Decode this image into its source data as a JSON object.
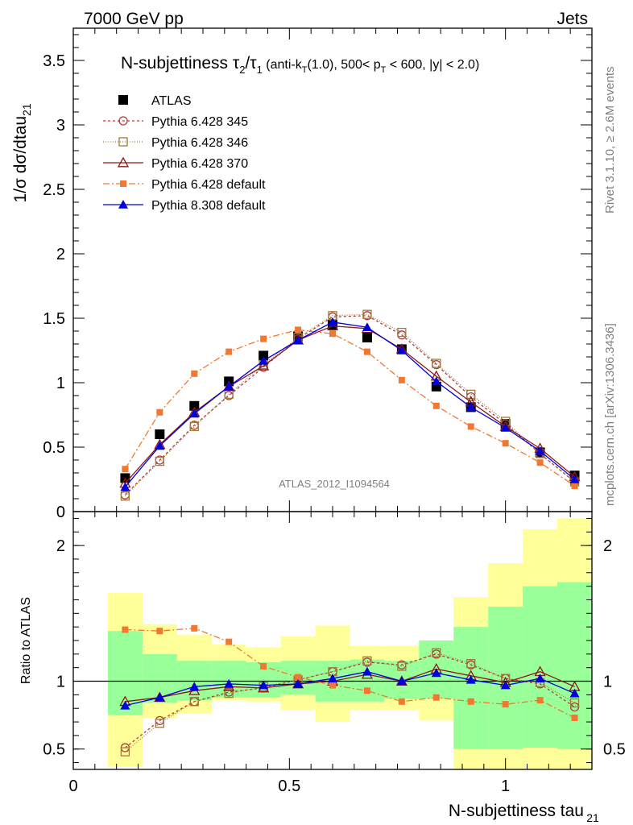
{
  "header": {
    "energy": "7000 GeV pp",
    "process": "Jets"
  },
  "side_labels": {
    "rivet": "Rivet 3.1.10, ≥ 2.6M events",
    "mcplots": "mcplots.cern.ch [arXiv:1306.3436]"
  },
  "watermark": "ATLAS_2012_I1094564",
  "chart_data": [
    {
      "type": "line",
      "title": "N-subjettiness τ2/τ1 (anti-kT(1.0), 500< pT < 600, |y| < 2.0)",
      "title_parts": {
        "main": "N-subjettiness τ",
        "sub1": "2",
        "slash": "/τ",
        "sub2": "1",
        "small_a": " (anti-k",
        "small_a_sub": "T",
        "small_b": "(1.0), 500< p",
        "small_b_sub": "T",
        "small_c": " < 600, |y| < 2.0)"
      },
      "ylabel": "1/σ dσ/dtau21",
      "ylabel_parts": {
        "main": "1/σ dσ/dtau",
        "sub": "21"
      },
      "xlim": [
        0,
        1.2
      ],
      "ylim": [
        0,
        3.75
      ],
      "yticks": [
        0,
        0.5,
        1,
        1.5,
        2,
        2.5,
        3,
        3.5
      ],
      "ytick_labels": [
        "0",
        "0.5",
        "1",
        "1.5",
        "2",
        "2.5",
        "3",
        "3.5"
      ],
      "legend_position": "top-left",
      "x": [
        0.12,
        0.2,
        0.28,
        0.36,
        0.44,
        0.52,
        0.6,
        0.68,
        0.76,
        0.84,
        0.92,
        1.0,
        1.08,
        1.16
      ],
      "series": [
        {
          "name": "ATLAS",
          "color": "#000000",
          "marker": "filled-square",
          "dash": "none",
          "values": [
            0.26,
            0.6,
            0.82,
            1.01,
            1.21,
            1.36,
            1.45,
            1.35,
            1.26,
            0.97,
            0.81,
            0.68,
            0.46,
            0.28
          ]
        },
        {
          "name": "Pythia 6.428 345",
          "color": "#b13a3a",
          "marker": "open-circle",
          "dash": "3,3",
          "values": [
            0.13,
            0.4,
            0.67,
            0.9,
            1.12,
            1.34,
            1.51,
            1.52,
            1.37,
            1.14,
            0.89,
            0.68,
            0.45,
            0.23
          ]
        },
        {
          "name": "Pythia 6.428 346",
          "color": "#9e7b3a",
          "marker": "open-square",
          "dash": "1,2",
          "values": [
            0.12,
            0.39,
            0.66,
            0.91,
            1.14,
            1.35,
            1.52,
            1.53,
            1.39,
            1.15,
            0.91,
            0.7,
            0.45,
            0.23
          ]
        },
        {
          "name": "Pythia 6.428 370",
          "color": "#8b1a1a",
          "marker": "open-triangle",
          "dash": "none",
          "values": [
            0.22,
            0.52,
            0.77,
            0.97,
            1.13,
            1.33,
            1.44,
            1.42,
            1.26,
            1.05,
            0.85,
            0.66,
            0.49,
            0.27
          ]
        },
        {
          "name": "Pythia 6.428 default",
          "color": "#f07830",
          "marker": "filled-square-small",
          "dash": "8,3,2,3",
          "values": [
            0.33,
            0.77,
            1.07,
            1.24,
            1.34,
            1.41,
            1.38,
            1.24,
            1.02,
            0.82,
            0.66,
            0.53,
            0.38,
            0.2
          ]
        },
        {
          "name": "Pythia 8.308 default",
          "color": "#0000dd",
          "marker": "filled-triangle",
          "dash": "none",
          "values": [
            0.19,
            0.51,
            0.76,
            0.97,
            1.17,
            1.33,
            1.47,
            1.43,
            1.25,
            1.01,
            0.81,
            0.65,
            0.47,
            0.25
          ]
        }
      ]
    },
    {
      "type": "line",
      "ylabel": "Ratio to ATLAS",
      "xlabel": "N-subjettiness tau21",
      "xlabel_parts": {
        "main": "N-subjettiness tau",
        "sub": "21"
      },
      "xlim": [
        0,
        1.2
      ],
      "ylim": [
        0.35,
        2.25
      ],
      "xticks": [
        0,
        0.5,
        1
      ],
      "xtick_labels": [
        "0",
        "0.5",
        "1"
      ],
      "yticks": [
        0.5,
        1,
        2
      ],
      "ytick_labels": [
        "0.5",
        "1",
        "2"
      ],
      "reference_line": 1,
      "bins": [
        [
          0.08,
          0.16
        ],
        [
          0.16,
          0.24
        ],
        [
          0.24,
          0.32
        ],
        [
          0.32,
          0.4
        ],
        [
          0.4,
          0.48
        ],
        [
          0.48,
          0.56
        ],
        [
          0.56,
          0.64
        ],
        [
          0.64,
          0.72
        ],
        [
          0.72,
          0.8
        ],
        [
          0.8,
          0.88
        ],
        [
          0.88,
          0.96
        ],
        [
          0.96,
          1.04
        ],
        [
          1.04,
          1.12
        ],
        [
          1.12,
          1.2
        ]
      ],
      "band_total": {
        "color": "#ffff99",
        "lo": [
          0.37,
          0.73,
          0.76,
          0.86,
          0.85,
          0.79,
          0.7,
          0.79,
          0.79,
          0.71,
          0.28,
          0.28,
          0.28,
          0.28
        ],
        "hi": [
          1.65,
          1.42,
          1.34,
          1.27,
          1.25,
          1.33,
          1.41,
          1.26,
          1.26,
          1.3,
          1.62,
          1.87,
          2.12,
          2.2
        ]
      },
      "band_stat": {
        "color": "#99ff99",
        "lo": [
          0.75,
          0.84,
          0.86,
          0.88,
          0.88,
          0.9,
          0.85,
          0.85,
          0.87,
          0.87,
          0.5,
          0.5,
          0.51,
          0.5
        ],
        "hi": [
          1.37,
          1.2,
          1.15,
          1.15,
          1.14,
          1.15,
          1.15,
          1.16,
          1.15,
          1.3,
          1.4,
          1.55,
          1.7,
          1.73
        ]
      },
      "series": [
        {
          "name": "Pythia 6.428 345",
          "color": "#b13a3a",
          "marker": "open-circle",
          "dash": "3,3",
          "values": [
            0.51,
            0.71,
            0.85,
            0.92,
            0.95,
            1.01,
            1.07,
            1.14,
            1.12,
            1.2,
            1.12,
            1.02,
            0.98,
            0.81
          ]
        },
        {
          "name": "Pythia 6.428 346",
          "color": "#9e7b3a",
          "marker": "open-square",
          "dash": "1,2",
          "values": [
            0.48,
            0.69,
            0.85,
            0.91,
            0.96,
            1.01,
            1.07,
            1.15,
            1.11,
            1.21,
            1.13,
            1.02,
            0.99,
            0.84
          ]
        },
        {
          "name": "Pythia 6.428 370",
          "color": "#8b1a1a",
          "marker": "open-triangle",
          "dash": "none",
          "values": [
            0.85,
            0.88,
            0.93,
            0.96,
            0.95,
            0.98,
            1.0,
            1.05,
            1.0,
            1.09,
            1.04,
            0.99,
            1.07,
            0.96
          ]
        },
        {
          "name": "Pythia 6.428 default",
          "color": "#f07830",
          "marker": "filled-square-small",
          "dash": "8,3,2,3",
          "values": [
            1.38,
            1.37,
            1.39,
            1.29,
            1.11,
            1.03,
            0.97,
            0.93,
            0.85,
            0.88,
            0.85,
            0.83,
            0.86,
            0.73
          ]
        },
        {
          "name": "Pythia 8.308 default",
          "color": "#0000dd",
          "marker": "filled-triangle",
          "dash": "none",
          "values": [
            0.82,
            0.88,
            0.96,
            0.98,
            0.97,
            0.98,
            1.02,
            1.07,
            1.0,
            1.06,
            1.01,
            0.97,
            1.02,
            0.91
          ]
        }
      ]
    }
  ]
}
